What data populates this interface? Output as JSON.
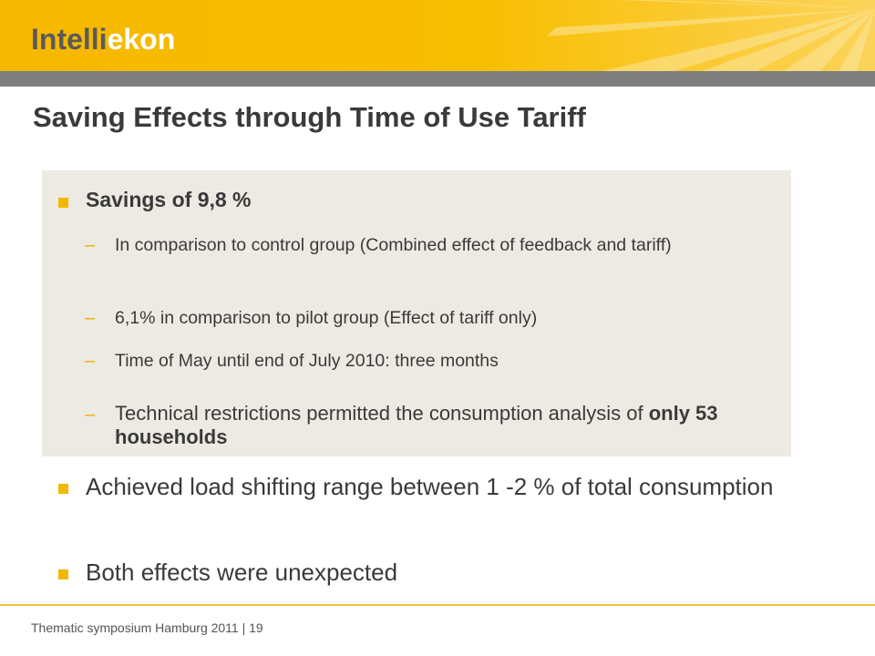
{
  "header": {
    "logo_part1": "Intelli",
    "logo_part2": "ekon",
    "accent_color": "#f6b800",
    "bar_color": "#7f7f7f"
  },
  "slide": {
    "title": "Saving Effects through Time of Use Tariff",
    "box_bullet": {
      "heading": "Savings of 9,8 %",
      "subitems": [
        "In comparison to control group (Combined effect of feedback and tariff)",
        "6,1% in comparison to pilot group (Effect of tariff only)",
        "Time of May until end of July 2010: three months"
      ],
      "last_subitem_prefix": "Technical restrictions permitted the consumption analysis of ",
      "last_subitem_bold": "only 53 households",
      "dash": "–"
    },
    "bullets": [
      "Achieved load shifting range between 1 -2 % of total consumption",
      "Both effects were unexpected"
    ]
  },
  "footer": {
    "text": "Thematic symposium Hamburg 2011 | 19"
  }
}
